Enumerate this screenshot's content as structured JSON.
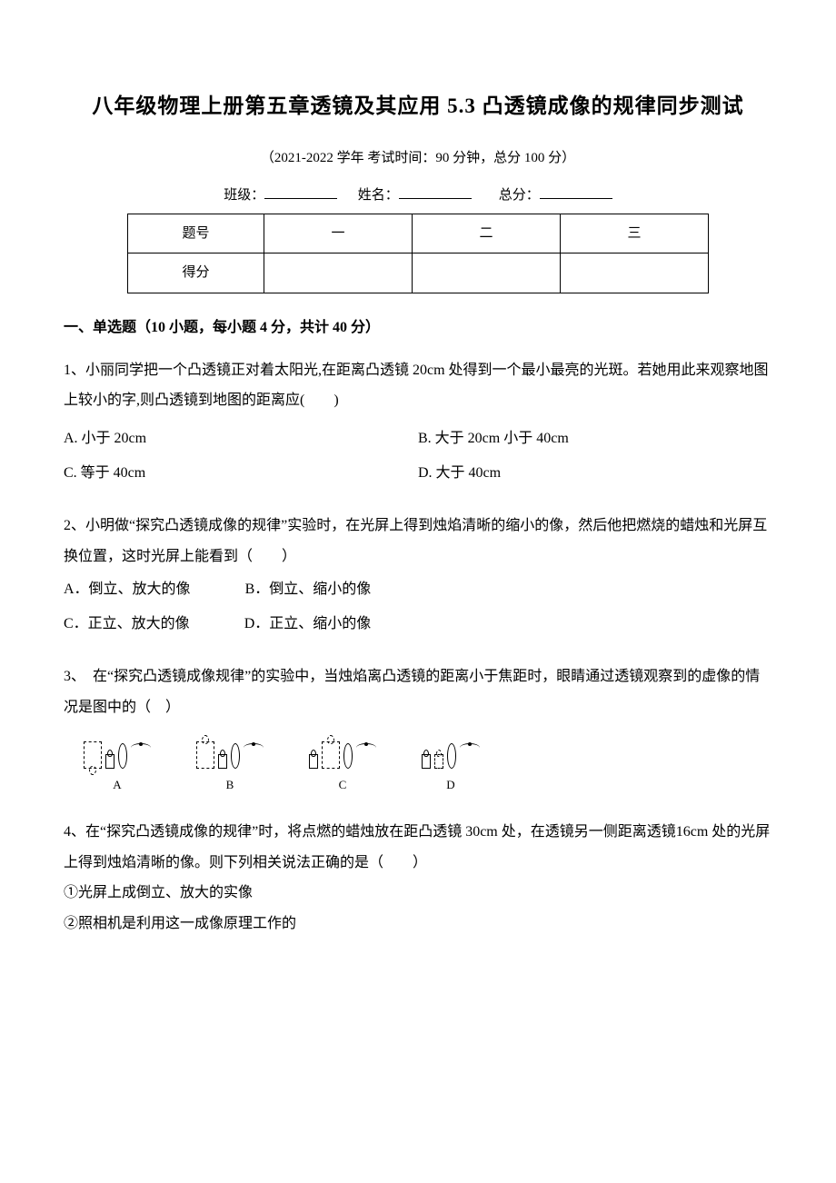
{
  "title": "八年级物理上册第五章透镜及其应用 5.3 凸透镜成像的规律同步测试",
  "subtitle": "（2021-2022 学年 考试时间：90 分钟，总分 100 分）",
  "blanks": {
    "class_label": "班级：",
    "name_label": "姓名：",
    "score_label": "总分："
  },
  "score_table": {
    "row1": [
      "题号",
      "一",
      "二",
      "三"
    ],
    "row2": [
      "得分",
      "",
      "",
      ""
    ]
  },
  "section1_heading": "一、单选题（10 小题，每小题 4 分，共计 40 分）",
  "q1": {
    "stem": "1、小丽同学把一个凸透镜正对着太阳光,在距离凸透镜 20cm 处得到一个最小最亮的光斑。若她用此来观察地图上较小的字,则凸透镜到地图的距离应(　　)",
    "optA": "A. 小于 20cm",
    "optB": "B. 大于 20cm 小于 40cm",
    "optC": "C. 等于 40cm",
    "optD": "D. 大于 40cm"
  },
  "q2": {
    "stem": "2、小明做“探究凸透镜成像的规律”实验时，在光屏上得到烛焰清晰的缩小的像，然后他把燃烧的蜡烛和光屏互换位置，这时光屏上能看到（　　）",
    "optA": "A．倒立、放大的像",
    "optB": "B．倒立、缩小的像",
    "optC": "C．正立、放大的像",
    "optD": "D．正立、缩小的像"
  },
  "q3": {
    "stem": "3、　在“探究凸透镜成像规律”的实验中，当烛焰离凸透镜的距离小于焦距时，眼睛通过透镜观察到的虚像的情况是图中的（　）",
    "labels": {
      "A": "A",
      "B": "B",
      "C": "C",
      "D": "D"
    }
  },
  "q4": {
    "stem": "4、在“探究凸透镜成像的规律”时，将点燃的蜡烛放在距凸透镜 30cm 处，在透镜另一侧距离透镜16cm 处的光屏上得到烛焰清晰的像。则下列相关说法正确的是（　　）",
    "s1": "①光屏上成倒立、放大的实像",
    "s2": "②照相机是利用这一成像原理工作的"
  }
}
